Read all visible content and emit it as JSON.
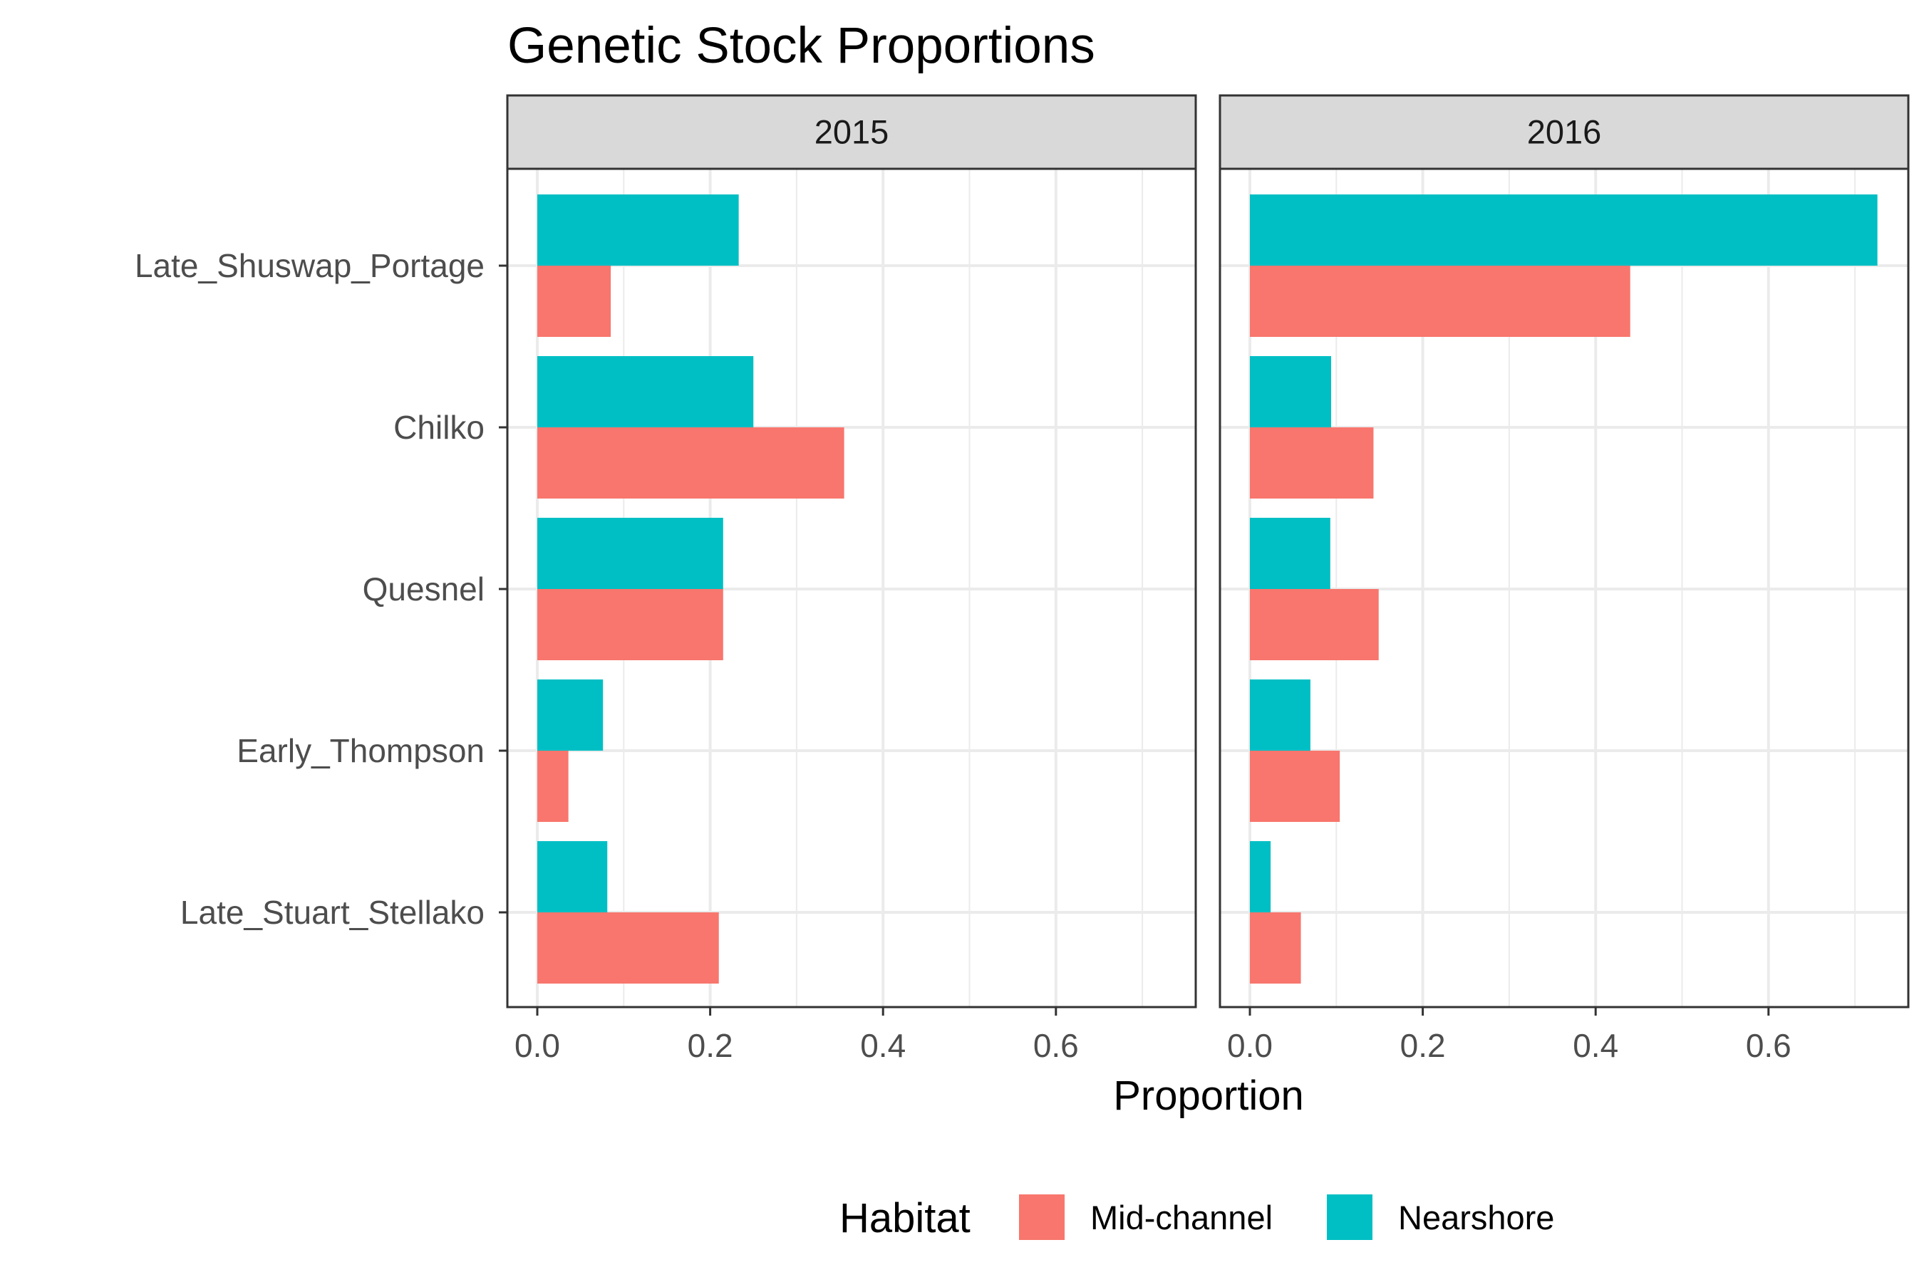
{
  "chart_data": {
    "type": "bar",
    "orientation": "horizontal",
    "title": "Genetic Stock Proportions",
    "xlabel": "Proportion",
    "ylabel": "",
    "xlim": [
      0,
      0.73
    ],
    "x_ticks": [
      "0.0",
      "0.2",
      "0.4",
      "0.6"
    ],
    "x_tick_values": [
      0,
      0.2,
      0.4,
      0.6
    ],
    "grid": true,
    "categories": [
      "Late_Shuswap_Portage",
      "Chilko",
      "Quesnel",
      "Early_Thompson",
      "Late_Stuart_Stellako"
    ],
    "facets": [
      {
        "label": "2015",
        "series": [
          {
            "name": "Mid-channel",
            "values": [
              0.085,
              0.355,
              0.215,
              0.036,
              0.21
            ]
          },
          {
            "name": "Nearshore",
            "values": [
              0.233,
              0.25,
              0.215,
              0.076,
              0.081
            ]
          }
        ]
      },
      {
        "label": "2016",
        "series": [
          {
            "name": "Mid-channel",
            "values": [
              0.44,
              0.143,
              0.149,
              0.104,
              0.059
            ]
          },
          {
            "name": "Nearshore",
            "values": [
              0.726,
              0.094,
              0.093,
              0.07,
              0.024
            ]
          }
        ]
      }
    ],
    "legend": {
      "title": "Habitat",
      "position": "bottom",
      "entries": [
        {
          "name": "Mid-channel",
          "color": "#F8766D"
        },
        {
          "name": "Nearshore",
          "color": "#00BFC4"
        }
      ]
    },
    "colors": {
      "Mid-channel": "#F8766D",
      "Nearshore": "#00BFC4",
      "strip_background": "#D9D9D9",
      "grid": "#EBEBEB"
    }
  }
}
